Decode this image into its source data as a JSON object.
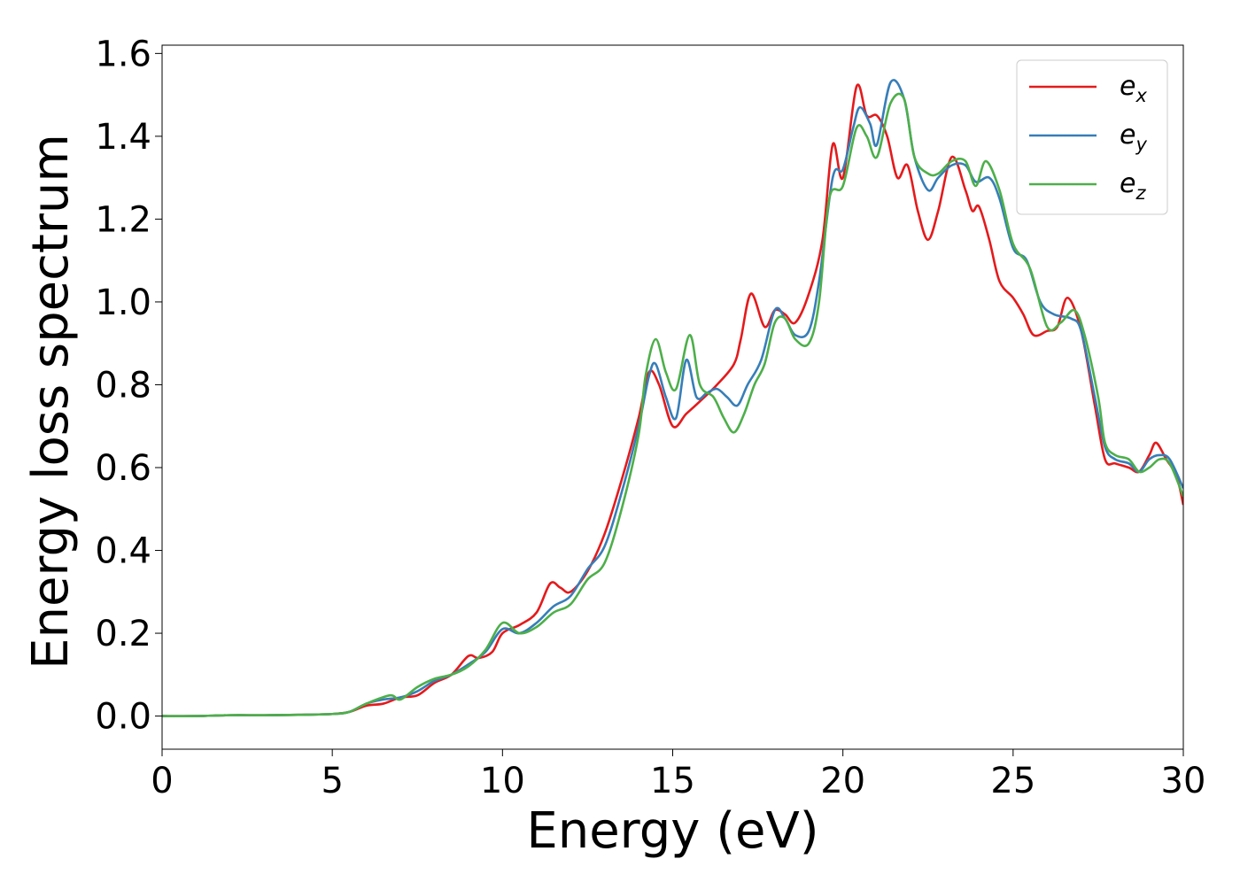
{
  "chart_data": {
    "type": "line",
    "title": "",
    "xlabel": "Energy (eV)",
    "ylabel": "Energy loss spectrum",
    "xlim": [
      0,
      30
    ],
    "ylim": [
      -0.08,
      1.62
    ],
    "xticks": [
      0,
      5,
      10,
      15,
      20,
      25,
      30
    ],
    "xtick_labels": [
      "0",
      "5",
      "10",
      "15",
      "20",
      "25",
      "30"
    ],
    "yticks": [
      0.0,
      0.2,
      0.4,
      0.6,
      0.8,
      1.0,
      1.2,
      1.4,
      1.6
    ],
    "ytick_labels": [
      "0.0",
      "0.2",
      "0.4",
      "0.6",
      "0.8",
      "1.0",
      "1.2",
      "1.4",
      "1.6"
    ],
    "grid": false,
    "legend_position": "top-right",
    "series": [
      {
        "name": "e_x",
        "legend_base": "e",
        "legend_sub": "x",
        "color": "#e41a1c",
        "points": [
          [
            0,
            0
          ],
          [
            1,
            0
          ],
          [
            2,
            0.002
          ],
          [
            3,
            0.002
          ],
          [
            4,
            0.003
          ],
          [
            5,
            0.005
          ],
          [
            5.5,
            0.01
          ],
          [
            6,
            0.025
          ],
          [
            6.5,
            0.03
          ],
          [
            7,
            0.045
          ],
          [
            7.5,
            0.05
          ],
          [
            8,
            0.08
          ],
          [
            8.5,
            0.1
          ],
          [
            9,
            0.145
          ],
          [
            9.3,
            0.14
          ],
          [
            9.7,
            0.155
          ],
          [
            10,
            0.2
          ],
          [
            10.5,
            0.22
          ],
          [
            11,
            0.25
          ],
          [
            11.4,
            0.32
          ],
          [
            11.7,
            0.31
          ],
          [
            12,
            0.3
          ],
          [
            12.5,
            0.35
          ],
          [
            13,
            0.44
          ],
          [
            13.5,
            0.57
          ],
          [
            14,
            0.72
          ],
          [
            14.3,
            0.83
          ],
          [
            14.6,
            0.8
          ],
          [
            15,
            0.7
          ],
          [
            15.4,
            0.73
          ],
          [
            15.8,
            0.76
          ],
          [
            16.3,
            0.8
          ],
          [
            16.8,
            0.85
          ],
          [
            17,
            0.91
          ],
          [
            17.3,
            1.02
          ],
          [
            17.7,
            0.94
          ],
          [
            18,
            0.98
          ],
          [
            18.3,
            0.97
          ],
          [
            18.6,
            0.95
          ],
          [
            19,
            1.02
          ],
          [
            19.4,
            1.15
          ],
          [
            19.7,
            1.38
          ],
          [
            20,
            1.3
          ],
          [
            20.4,
            1.52
          ],
          [
            20.7,
            1.45
          ],
          [
            21,
            1.45
          ],
          [
            21.3,
            1.4
          ],
          [
            21.6,
            1.3
          ],
          [
            21.9,
            1.33
          ],
          [
            22.2,
            1.22
          ],
          [
            22.5,
            1.15
          ],
          [
            22.8,
            1.22
          ],
          [
            23.2,
            1.35
          ],
          [
            23.6,
            1.27
          ],
          [
            23.8,
            1.22
          ],
          [
            24,
            1.23
          ],
          [
            24.3,
            1.15
          ],
          [
            24.6,
            1.05
          ],
          [
            25,
            1.01
          ],
          [
            25.3,
            0.97
          ],
          [
            25.6,
            0.92
          ],
          [
            26,
            0.93
          ],
          [
            26.3,
            0.94
          ],
          [
            26.6,
            1.01
          ],
          [
            27,
            0.93
          ],
          [
            27.4,
            0.75
          ],
          [
            27.7,
            0.62
          ],
          [
            28,
            0.61
          ],
          [
            28.4,
            0.6
          ],
          [
            28.7,
            0.59
          ],
          [
            29,
            0.63
          ],
          [
            29.2,
            0.66
          ],
          [
            29.5,
            0.62
          ],
          [
            29.8,
            0.58
          ],
          [
            30,
            0.51
          ]
        ]
      },
      {
        "name": "e_y",
        "legend_base": "e",
        "legend_sub": "y",
        "color": "#377eb8",
        "points": [
          [
            0,
            0
          ],
          [
            1,
            0
          ],
          [
            2,
            0.002
          ],
          [
            3,
            0.002
          ],
          [
            4,
            0.003
          ],
          [
            5,
            0.005
          ],
          [
            5.5,
            0.01
          ],
          [
            6,
            0.03
          ],
          [
            6.5,
            0.04
          ],
          [
            7,
            0.045
          ],
          [
            7.5,
            0.06
          ],
          [
            8,
            0.085
          ],
          [
            8.5,
            0.1
          ],
          [
            9,
            0.125
          ],
          [
            9.5,
            0.155
          ],
          [
            10,
            0.21
          ],
          [
            10.5,
            0.2
          ],
          [
            11,
            0.225
          ],
          [
            11.5,
            0.265
          ],
          [
            12,
            0.29
          ],
          [
            12.5,
            0.355
          ],
          [
            13,
            0.41
          ],
          [
            13.5,
            0.54
          ],
          [
            14,
            0.7
          ],
          [
            14.3,
            0.82
          ],
          [
            14.5,
            0.85
          ],
          [
            14.8,
            0.77
          ],
          [
            15.1,
            0.72
          ],
          [
            15.4,
            0.86
          ],
          [
            15.7,
            0.77
          ],
          [
            16,
            0.78
          ],
          [
            16.3,
            0.79
          ],
          [
            16.6,
            0.77
          ],
          [
            16.9,
            0.75
          ],
          [
            17.2,
            0.8
          ],
          [
            17.6,
            0.86
          ],
          [
            18,
            0.98
          ],
          [
            18.3,
            0.96
          ],
          [
            18.6,
            0.92
          ],
          [
            19,
            0.93
          ],
          [
            19.3,
            1.05
          ],
          [
            19.7,
            1.3
          ],
          [
            20,
            1.32
          ],
          [
            20.3,
            1.42
          ],
          [
            20.5,
            1.47
          ],
          [
            20.8,
            1.43
          ],
          [
            21,
            1.38
          ],
          [
            21.4,
            1.53
          ],
          [
            21.8,
            1.49
          ],
          [
            22.1,
            1.35
          ],
          [
            22.5,
            1.27
          ],
          [
            22.8,
            1.3
          ],
          [
            23.2,
            1.33
          ],
          [
            23.6,
            1.33
          ],
          [
            23.9,
            1.29
          ],
          [
            24.3,
            1.3
          ],
          [
            24.6,
            1.25
          ],
          [
            25,
            1.13
          ],
          [
            25.4,
            1.1
          ],
          [
            25.8,
            1.0
          ],
          [
            26.2,
            0.97
          ],
          [
            26.7,
            0.96
          ],
          [
            27,
            0.93
          ],
          [
            27.4,
            0.77
          ],
          [
            27.7,
            0.65
          ],
          [
            28,
            0.62
          ],
          [
            28.4,
            0.61
          ],
          [
            28.7,
            0.59
          ],
          [
            29,
            0.62
          ],
          [
            29.3,
            0.63
          ],
          [
            29.6,
            0.62
          ],
          [
            30,
            0.55
          ]
        ]
      },
      {
        "name": "e_z",
        "legend_base": "e",
        "legend_sub": "z",
        "color": "#4daf4a",
        "points": [
          [
            0,
            0
          ],
          [
            1,
            0
          ],
          [
            2,
            0.002
          ],
          [
            3,
            0.002
          ],
          [
            4,
            0.003
          ],
          [
            5,
            0.005
          ],
          [
            5.5,
            0.01
          ],
          [
            6,
            0.03
          ],
          [
            6.7,
            0.05
          ],
          [
            7,
            0.04
          ],
          [
            7.5,
            0.07
          ],
          [
            8,
            0.09
          ],
          [
            8.5,
            0.1
          ],
          [
            9,
            0.12
          ],
          [
            9.5,
            0.16
          ],
          [
            10,
            0.225
          ],
          [
            10.5,
            0.2
          ],
          [
            11,
            0.215
          ],
          [
            11.5,
            0.25
          ],
          [
            12,
            0.27
          ],
          [
            12.5,
            0.33
          ],
          [
            13,
            0.37
          ],
          [
            13.5,
            0.5
          ],
          [
            14,
            0.68
          ],
          [
            14.2,
            0.82
          ],
          [
            14.5,
            0.91
          ],
          [
            14.8,
            0.83
          ],
          [
            15.1,
            0.79
          ],
          [
            15.5,
            0.92
          ],
          [
            15.8,
            0.8
          ],
          [
            16.2,
            0.77
          ],
          [
            16.5,
            0.72
          ],
          [
            16.8,
            0.685
          ],
          [
            17.1,
            0.73
          ],
          [
            17.4,
            0.8
          ],
          [
            17.7,
            0.85
          ],
          [
            18,
            0.95
          ],
          [
            18.3,
            0.96
          ],
          [
            18.6,
            0.91
          ],
          [
            19,
            0.9
          ],
          [
            19.3,
            1.0
          ],
          [
            19.6,
            1.25
          ],
          [
            20,
            1.28
          ],
          [
            20.4,
            1.42
          ],
          [
            20.7,
            1.4
          ],
          [
            21,
            1.35
          ],
          [
            21.4,
            1.48
          ],
          [
            21.8,
            1.49
          ],
          [
            22.1,
            1.35
          ],
          [
            22.5,
            1.31
          ],
          [
            22.8,
            1.31
          ],
          [
            23.2,
            1.34
          ],
          [
            23.6,
            1.34
          ],
          [
            23.9,
            1.28
          ],
          [
            24.2,
            1.34
          ],
          [
            24.6,
            1.27
          ],
          [
            25,
            1.14
          ],
          [
            25.5,
            1.08
          ],
          [
            26,
            0.94
          ],
          [
            26.4,
            0.95
          ],
          [
            26.8,
            0.98
          ],
          [
            27.1,
            0.92
          ],
          [
            27.5,
            0.77
          ],
          [
            27.7,
            0.66
          ],
          [
            28,
            0.63
          ],
          [
            28.4,
            0.62
          ],
          [
            28.7,
            0.59
          ],
          [
            29,
            0.6
          ],
          [
            29.3,
            0.62
          ],
          [
            29.6,
            0.61
          ],
          [
            30,
            0.53
          ]
        ]
      }
    ]
  }
}
